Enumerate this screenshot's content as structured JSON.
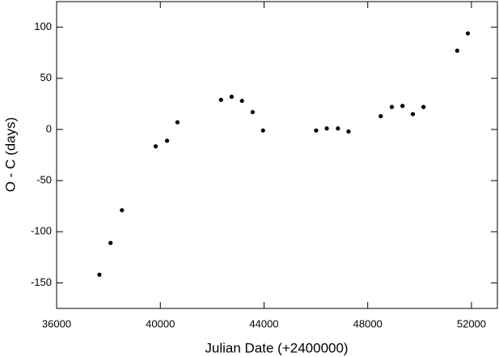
{
  "chart_data": {
    "type": "scatter",
    "xlabel": "Julian Date (+2400000)",
    "ylabel": "O - C (days)",
    "x": [
      37650,
      38080,
      38520,
      39820,
      40260,
      40660,
      42340,
      42750,
      43150,
      43560,
      43960,
      46010,
      46420,
      46850,
      47260,
      48500,
      48930,
      49340,
      49740,
      50150,
      51450,
      51860
    ],
    "values": [
      -142,
      -111,
      -79,
      -16.5,
      -11,
      7,
      29,
      32,
      28,
      17,
      -1,
      -1,
      1,
      1,
      -2,
      13,
      22,
      23,
      15,
      22,
      77,
      94
    ],
    "color": "#000000",
    "xlim": [
      36000,
      53000
    ],
    "ylim": [
      -175,
      125
    ],
    "xticks": [
      36000,
      40000,
      44000,
      48000,
      52000
    ],
    "yticks": [
      -150,
      -100,
      -50,
      0,
      50,
      100
    ],
    "grid": false
  }
}
